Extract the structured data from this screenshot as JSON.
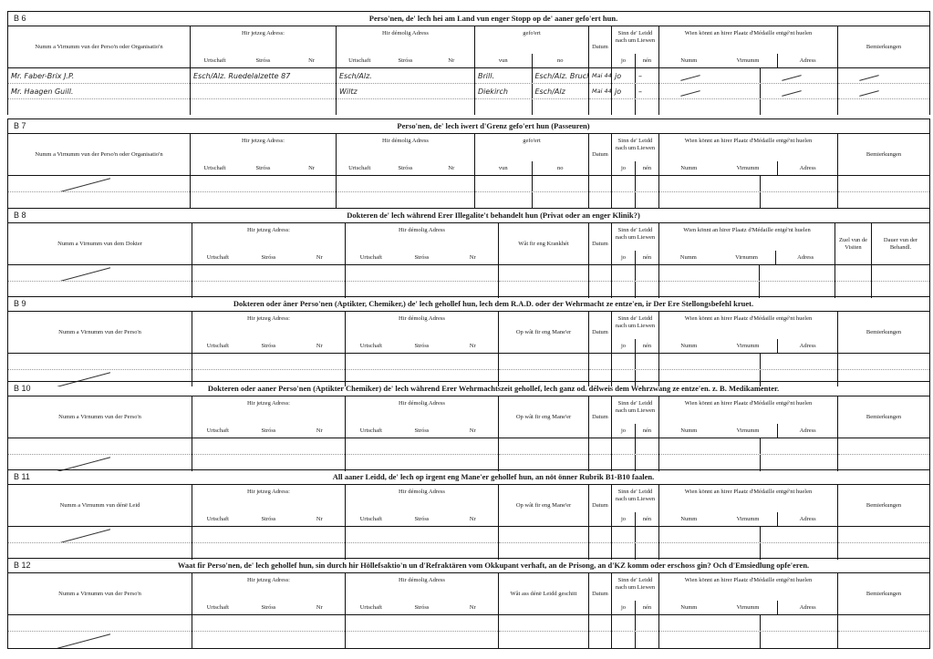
{
  "labels": {
    "name_org": "Numm a Virnumm vun der Perso'n oder Organisatio'n",
    "name_person": "Numm a Virnumm vun der Perso'n",
    "name_doctor": "Numm a Virnumm vun dem Dokter",
    "name_leid": "Numm a Virnumm vun dénë Leid",
    "jetzeg": "Hir jetzeg Adress:",
    "demolig": "Hir démolig Adress",
    "urtschaft": "Urtschaft",
    "stross": "Stróss",
    "nr": "Nr",
    "gefoert": "gefo'ert",
    "vun": "vun",
    "no": "no",
    "datum": "Datum",
    "sinn": "Sinn de' Leidd nach um Liewen",
    "jo": "jo",
    "nen": "nén",
    "medaille": "Wien könnt an hirer Plaatz d'Médaille entgé'nt huelen",
    "numm": "Numm",
    "virnumm": "Virnumm",
    "adress": "Adress",
    "bemierkungen": "Bemierkungen",
    "krankhet": "Wât fir eng Krankhét",
    "zuel": "Zuel vun de Visiten",
    "dauer": "Dauer vun der Behandl.",
    "manéer": "Op wât fir eng Mane'er",
    "geschitt": "Wât ass dénë Leidd geschitt"
  },
  "sections": [
    {
      "code": "B 6",
      "title": "Perso'nen, de' lech hei am Land vun enger Stopp op de' aaner gefo'ert hun.",
      "layout": "b6",
      "name_label": "name_org",
      "rows": [
        {
          "name": "Mr. Faber-Brix J.P.",
          "jetzeg": "Esch/Alz. Ruedelalzette 87",
          "demolig": "Esch/Alz.",
          "vun": "Brill.",
          "no": "Esch/Alz. Bruch",
          "datum": "Mai 44",
          "jo": "jo",
          "nen": "–",
          "strikes": true
        },
        {
          "name": "Mr. Haagen Guill.",
          "jetzeg": "",
          "demolig": "Wiltz",
          "vun": "Diekirch",
          "no": "Esch/Alz",
          "datum": "Mai 44",
          "jo": "jo",
          "nen": "–",
          "strikes": true
        },
        {}
      ]
    },
    {
      "code": "B 7",
      "title": "Perso'nen, de' lech iwert d'Grenz gefo'ert hun (Passeuren)",
      "layout": "b6",
      "name_label": "name_org",
      "rows": [
        {
          "strike_name": true
        },
        {}
      ]
    },
    {
      "code": "B 8",
      "title": "Dokteren de' lech während Erer Illegalite't behandelt hun (Privat oder an enger Klinik?)",
      "layout": "b8",
      "name_label": "name_doctor",
      "rows": [
        {
          "strike_name": true
        },
        {}
      ]
    },
    {
      "code": "B 9",
      "title": "Dokteren oder âner Perso'nen (Aptikter, Chemiker,) de' lech gehollef hun, lech dem R.A.D. oder der Wehrmacht ze entze'en, ir Der Ere Stellongsbefehl kruet.",
      "layout": "b9",
      "name_label": "name_person",
      "rows": [
        {},
        {
          "strike_name": true
        }
      ]
    },
    {
      "code": "B 10",
      "title": "Dokteren oder aaner Perso'nen (Aptikter Chemiker) de' lech während Erer Wehrmachtszeit gehollef, lech ganz od. délweis dem Wehrzwang ze entze'en. z. B. Medikamenter.",
      "layout": "b9",
      "name_label": "name_person",
      "rows": [
        {},
        {
          "strike_name": true
        }
      ]
    },
    {
      "code": "B 11",
      "title": "All aaner Leidd, de' lech op irgent eng Mane'er gehollef hun, an nöt önner Rubrik B1-B10 faalen.",
      "layout": "b9",
      "name_label": "name_leid",
      "rows": [
        {
          "strike_name": true
        },
        {}
      ]
    },
    {
      "code": "B 12",
      "title": "Waat fir Perso'nen, de' lech gehollef hun, sin durch hir Höllefsaktio'n un d'Refraktären vom Okkupant verhaft, an de Prisong, an d'KZ komm oder erschoss gin? Och d'Emsiedlung opfe'eren.",
      "layout": "b12",
      "name_label": "name_person",
      "rows": [
        {},
        {
          "strike_name": true
        }
      ]
    }
  ]
}
